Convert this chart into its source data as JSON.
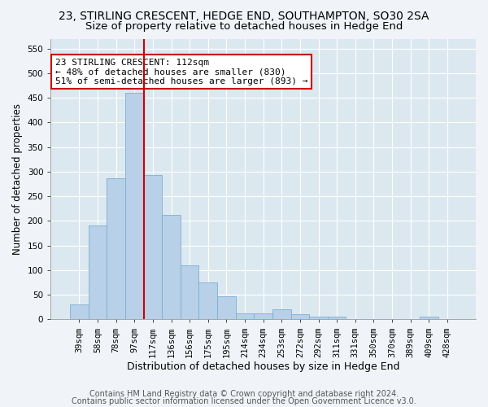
{
  "title": "23, STIRLING CRESCENT, HEDGE END, SOUTHAMPTON, SO30 2SA",
  "subtitle": "Size of property relative to detached houses in Hedge End",
  "xlabel": "Distribution of detached houses by size in Hedge End",
  "ylabel": "Number of detached properties",
  "categories": [
    "39sqm",
    "58sqm",
    "78sqm",
    "97sqm",
    "117sqm",
    "136sqm",
    "156sqm",
    "175sqm",
    "195sqm",
    "214sqm",
    "234sqm",
    "253sqm",
    "272sqm",
    "292sqm",
    "311sqm",
    "331sqm",
    "350sqm",
    "370sqm",
    "389sqm",
    "409sqm",
    "428sqm"
  ],
  "values": [
    30,
    190,
    287,
    460,
    293,
    213,
    110,
    75,
    47,
    13,
    12,
    21,
    10,
    5,
    5,
    0,
    0,
    0,
    0,
    5,
    0
  ],
  "bar_color": "#b8d0e8",
  "bar_edge_color": "#7aafd4",
  "red_line_index": 3.5,
  "annotation_text": "23 STIRLING CRESCENT: 112sqm\n← 48% of detached houses are smaller (830)\n51% of semi-detached houses are larger (893) →",
  "annotation_box_color": "#ffffff",
  "annotation_box_edge_color": "#cc0000",
  "ylim": [
    0,
    570
  ],
  "yticks": [
    0,
    50,
    100,
    150,
    200,
    250,
    300,
    350,
    400,
    450,
    500,
    550
  ],
  "footer1": "Contains HM Land Registry data © Crown copyright and database right 2024.",
  "footer2": "Contains public sector information licensed under the Open Government Licence v3.0.",
  "bg_color": "#f0f4f8",
  "plot_bg_color": "#dce8f0",
  "grid_color": "#ffffff",
  "title_fontsize": 10,
  "subtitle_fontsize": 9.5,
  "xlabel_fontsize": 9,
  "ylabel_fontsize": 8.5,
  "tick_fontsize": 7.5,
  "footer_fontsize": 7,
  "annotation_fontsize": 8
}
